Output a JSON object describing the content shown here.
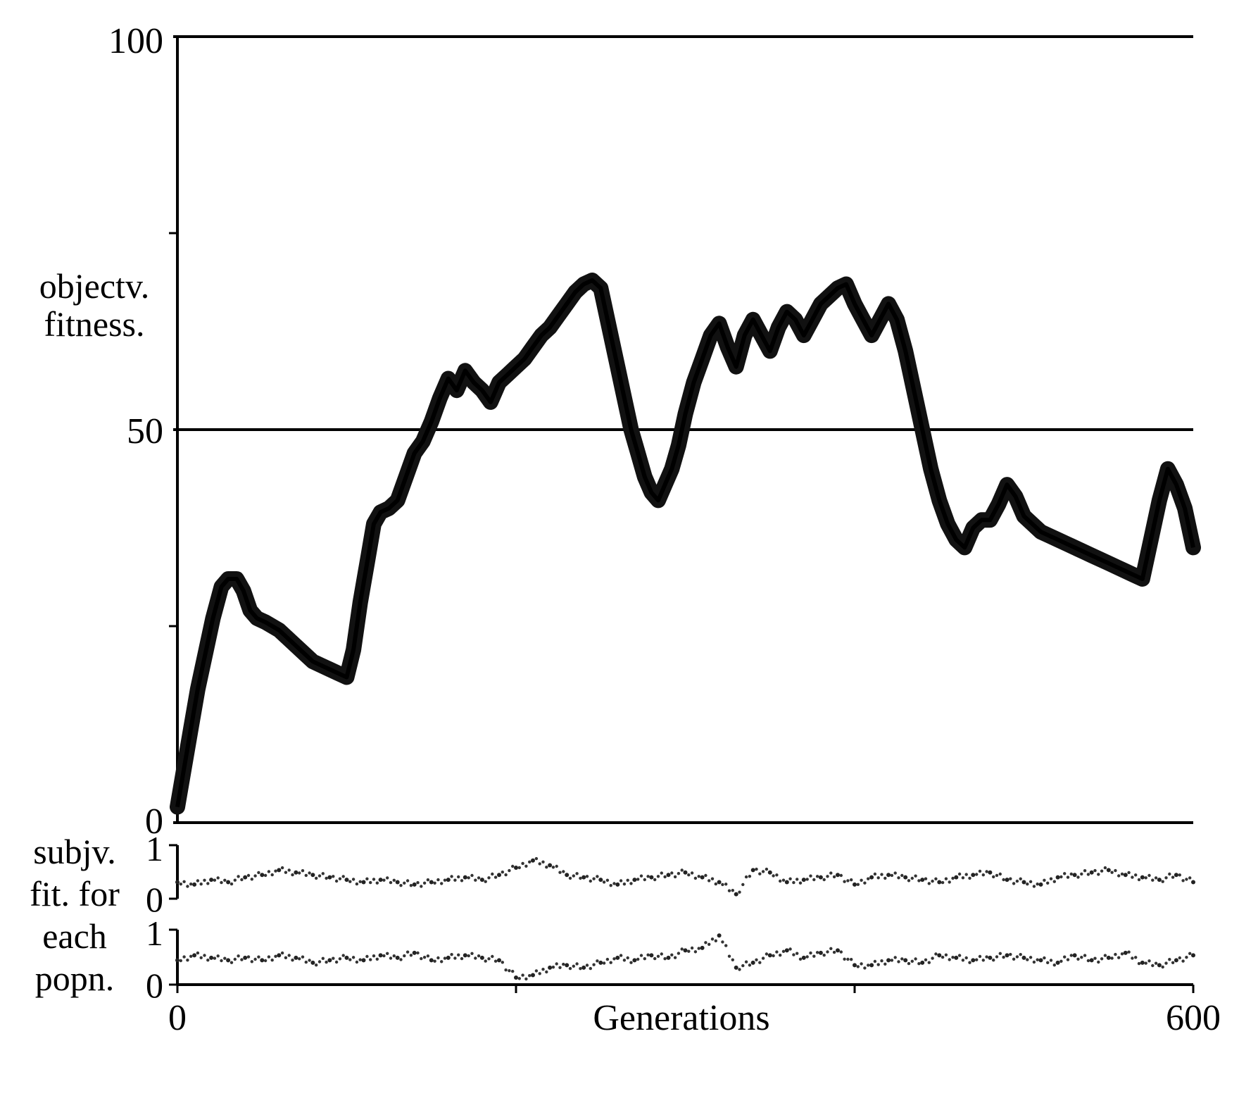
{
  "chart_data": [
    {
      "type": "line",
      "ylabel_lines": [
        "objectv.",
        "fitness."
      ],
      "ylim": [
        0,
        100
      ],
      "yticks": [
        "0",
        "50",
        "100"
      ],
      "xlim": [
        0,
        600
      ],
      "gridlines_y": [
        0,
        50,
        100
      ],
      "series": [
        {
          "x": [
            0,
            4,
            8,
            12,
            17,
            21,
            26,
            30,
            35,
            39,
            43,
            47,
            52,
            56,
            60,
            65,
            70,
            75,
            80,
            85,
            90,
            95,
            100,
            104,
            108,
            112,
            116,
            120,
            125,
            130,
            135,
            140,
            145,
            150,
            155,
            160,
            165,
            170,
            175,
            180,
            185,
            190,
            195,
            200,
            205,
            210,
            215,
            220,
            225,
            230,
            235,
            240,
            245,
            250,
            255,
            260,
            264,
            268,
            272,
            276,
            280,
            284,
            288,
            292,
            296,
            300,
            305,
            310,
            315,
            320,
            325,
            330,
            335,
            340,
            345,
            350,
            355,
            360,
            365,
            370,
            375,
            380,
            385,
            390,
            395,
            400,
            405,
            410,
            415,
            420,
            425,
            430,
            435,
            440,
            445,
            450,
            455,
            460,
            465,
            470,
            475,
            480,
            485,
            490,
            495,
            500,
            505,
            510,
            515,
            520,
            525,
            530,
            535,
            540,
            545,
            550,
            555,
            560,
            565,
            570,
            575,
            580,
            585,
            590,
            595,
            600
          ],
          "y": [
            2,
            7,
            12,
            17,
            22,
            26,
            30,
            31,
            31,
            29.5,
            27,
            26,
            25.5,
            25,
            24.5,
            23.5,
            22.5,
            21.5,
            20.5,
            20,
            19.5,
            19,
            18.5,
            22,
            28,
            33,
            38,
            39.5,
            40,
            41,
            44,
            47,
            48.5,
            51,
            54,
            56.5,
            55,
            57.5,
            56,
            55,
            53.5,
            56,
            57,
            58,
            59,
            60.5,
            62,
            63,
            64.5,
            66,
            67.5,
            68.5,
            69,
            68,
            63,
            58,
            54,
            50,
            47,
            44,
            42,
            41,
            43,
            45,
            48,
            52,
            56,
            59,
            62,
            63.5,
            60.5,
            58,
            62,
            64,
            62,
            60,
            63,
            65,
            64,
            62,
            64,
            66,
            67,
            68,
            68.5,
            66,
            64,
            62,
            64,
            66,
            64,
            60,
            55,
            50,
            45,
            41,
            38,
            36,
            35,
            37.5,
            38.5,
            38.5,
            40.5,
            43,
            41.5,
            39,
            38,
            37,
            36.5,
            36,
            35.5,
            35,
            34.5,
            34,
            33.5,
            33,
            32.5,
            32,
            31.5,
            31,
            36,
            41,
            45,
            43,
            40,
            35
          ]
        }
      ]
    },
    {
      "type": "scatter",
      "ylabel_lines": [
        "subjv.",
        "fit. for",
        "each",
        "popn."
      ],
      "subplots": [
        {
          "ylim": [
            0,
            1
          ],
          "yticks": [
            "0",
            "1"
          ],
          "x": [
            0,
            10,
            20,
            30,
            40,
            50,
            60,
            70,
            80,
            90,
            100,
            110,
            120,
            130,
            140,
            150,
            160,
            170,
            180,
            190,
            200,
            210,
            220,
            230,
            240,
            250,
            260,
            270,
            280,
            290,
            300,
            310,
            320,
            330,
            340,
            350,
            360,
            370,
            380,
            390,
            400,
            410,
            420,
            430,
            440,
            450,
            460,
            470,
            480,
            490,
            500,
            510,
            520,
            530,
            540,
            550,
            560,
            570,
            580,
            590,
            600
          ],
          "y": [
            0.3,
            0.25,
            0.35,
            0.3,
            0.4,
            0.45,
            0.55,
            0.5,
            0.45,
            0.4,
            0.35,
            0.3,
            0.35,
            0.3,
            0.25,
            0.3,
            0.35,
            0.4,
            0.35,
            0.45,
            0.6,
            0.75,
            0.65,
            0.45,
            0.4,
            0.35,
            0.25,
            0.35,
            0.4,
            0.45,
            0.5,
            0.4,
            0.3,
            0.05,
            0.55,
            0.5,
            0.3,
            0.35,
            0.4,
            0.45,
            0.25,
            0.4,
            0.45,
            0.4,
            0.35,
            0.3,
            0.4,
            0.45,
            0.5,
            0.35,
            0.3,
            0.25,
            0.4,
            0.45,
            0.5,
            0.55,
            0.45,
            0.4,
            0.35,
            0.45,
            0.3
          ]
        },
        {
          "ylim": [
            0,
            1
          ],
          "yticks": [
            "0",
            "1"
          ],
          "x": [
            0,
            10,
            20,
            30,
            40,
            50,
            60,
            70,
            80,
            90,
            100,
            110,
            120,
            130,
            140,
            150,
            160,
            170,
            180,
            190,
            200,
            210,
            220,
            230,
            240,
            250,
            260,
            270,
            280,
            290,
            300,
            310,
            320,
            330,
            340,
            350,
            360,
            370,
            380,
            390,
            400,
            410,
            420,
            430,
            440,
            450,
            460,
            470,
            480,
            490,
            500,
            510,
            520,
            530,
            540,
            550,
            560,
            570,
            580,
            590,
            600
          ],
          "y": [
            0.45,
            0.55,
            0.5,
            0.45,
            0.5,
            0.45,
            0.55,
            0.5,
            0.4,
            0.45,
            0.5,
            0.45,
            0.55,
            0.5,
            0.6,
            0.45,
            0.5,
            0.55,
            0.5,
            0.45,
            0.1,
            0.15,
            0.3,
            0.35,
            0.3,
            0.4,
            0.5,
            0.45,
            0.55,
            0.5,
            0.65,
            0.7,
            0.95,
            0.3,
            0.4,
            0.55,
            0.65,
            0.5,
            0.6,
            0.65,
            0.35,
            0.35,
            0.45,
            0.45,
            0.4,
            0.55,
            0.5,
            0.45,
            0.5,
            0.55,
            0.5,
            0.45,
            0.4,
            0.55,
            0.45,
            0.5,
            0.6,
            0.4,
            0.35,
            0.45,
            0.55
          ]
        }
      ],
      "xlabel": "Generations",
      "xlim": [
        0,
        600
      ],
      "xticks": [
        "0",
        "600"
      ]
    }
  ]
}
